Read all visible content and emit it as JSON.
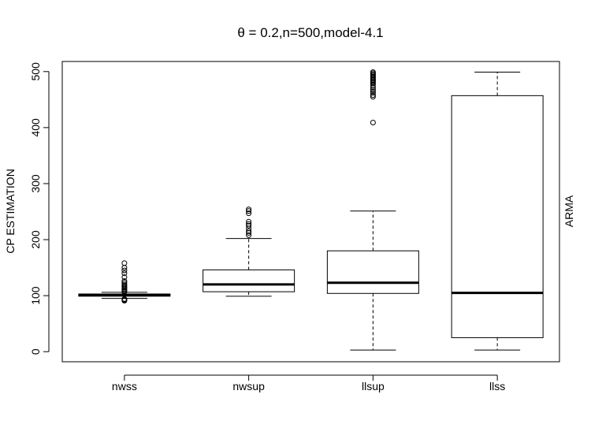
{
  "chart_data": {
    "type": "boxplot",
    "title": "θ = 0.2,n=500,model-4.1",
    "xlabel": "",
    "ylabel": "CP ESTIMATION",
    "right_label": "ARMA",
    "ylim": [
      -18,
      518
    ],
    "yticks": [
      0,
      100,
      200,
      300,
      400,
      500
    ],
    "categories": [
      "nwss",
      "nwsup",
      "llsup",
      "llss"
    ],
    "grid": false,
    "boxes": [
      {
        "name": "nwss",
        "whisker_low": 95,
        "q1": 99,
        "median": 101,
        "q3": 103,
        "whisker_high": 106,
        "outliers": [
          158,
          150,
          145,
          140,
          133,
          126,
          123,
          120,
          118,
          116,
          114,
          112,
          110,
          108,
          107,
          94,
          93,
          92,
          91
        ]
      },
      {
        "name": "nwsup",
        "whisker_low": 99,
        "q1": 107,
        "median": 120,
        "q3": 146,
        "whisker_high": 202,
        "outliers": [
          254,
          251,
          247,
          232,
          228,
          225,
          220,
          215,
          212,
          208
        ]
      },
      {
        "name": "llsup",
        "whisker_low": 3,
        "q1": 104,
        "median": 123,
        "q3": 180,
        "whisker_high": 251,
        "outliers": [
          499,
          497,
          495,
          493,
          491,
          489,
          487,
          485,
          483,
          481,
          479,
          476,
          472,
          468,
          465,
          462,
          458,
          455,
          409
        ]
      },
      {
        "name": "llss",
        "whisker_low": 3,
        "q1": 25,
        "median": 105,
        "q3": 457,
        "whisker_high": 499,
        "outliers": []
      }
    ]
  }
}
